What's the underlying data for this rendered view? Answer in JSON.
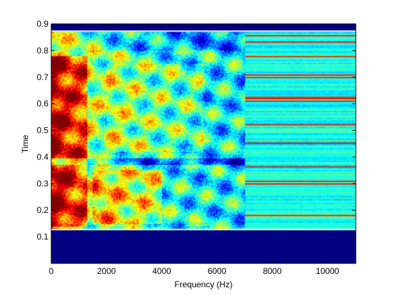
{
  "chart_data": {
    "type": "heatmap",
    "title": "",
    "xlabel": "Frequency (Hz)",
    "ylabel": "Time",
    "xlim": [
      0,
      11025
    ],
    "ylim": [
      0,
      0.9
    ],
    "x_ticks": [
      0,
      2000,
      4000,
      6000,
      8000,
      10000
    ],
    "x_tick_labels": [
      "0",
      "2000",
      "4000",
      "6000",
      "8000",
      "10000"
    ],
    "y_ticks": [
      0.1,
      0.2,
      0.3,
      0.4,
      0.5,
      0.6,
      0.7,
      0.8,
      0.9
    ],
    "y_tick_labels": [
      "0.1",
      "0.2",
      "0.3",
      "0.4",
      "0.5",
      "0.6",
      "0.7",
      "0.8",
      "0.9"
    ],
    "grid": false,
    "legend": "none",
    "colormap": "jet",
    "background_color": "#000080",
    "signal_time_range": [
      0.13,
      0.87
    ],
    "signal_bandwidth_hz": 7000,
    "energy_regions": [
      {
        "f_range": [
          0,
          1200
        ],
        "t_range": [
          0.14,
          0.78
        ],
        "level": "high"
      },
      {
        "f_range": [
          1200,
          2000
        ],
        "t_range": [
          0.42,
          0.6
        ],
        "level": "high"
      },
      {
        "f_range": [
          1500,
          4000
        ],
        "t_range": [
          0.15,
          0.35
        ],
        "level": "medium-high"
      },
      {
        "f_range": [
          2000,
          5500
        ],
        "t_range": [
          0.4,
          0.75
        ],
        "level": "medium"
      },
      {
        "f_range": [
          5500,
          7000
        ],
        "t_range": [
          0.15,
          0.8
        ],
        "level": "medium"
      },
      {
        "f_range": [
          7000,
          11025
        ],
        "t_range": [
          0.13,
          0.87
        ],
        "level": "low"
      }
    ]
  }
}
